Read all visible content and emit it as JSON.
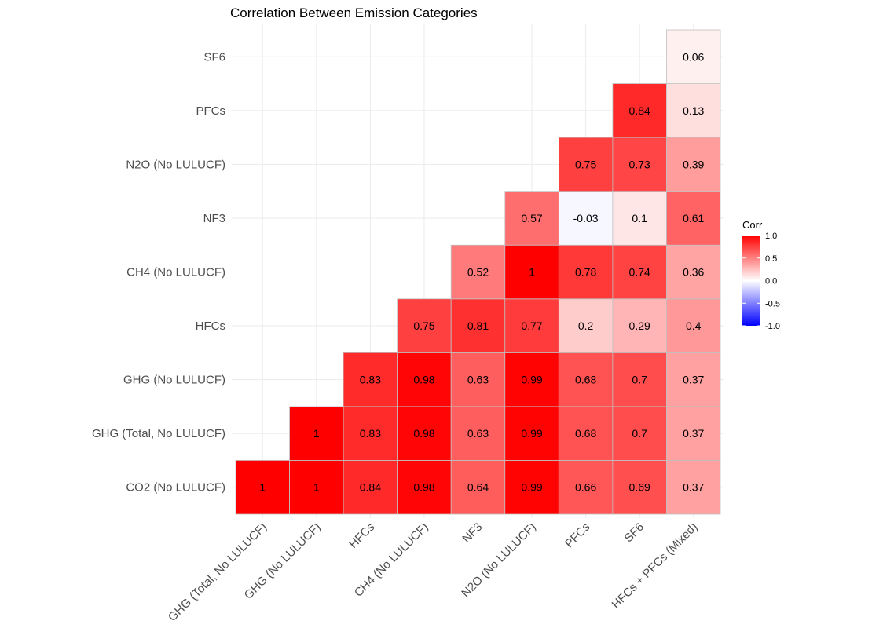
{
  "chart_data": {
    "type": "heatmap",
    "title": "Correlation Between Emission Categories",
    "x_categories": [
      "GHG (Total, No LULUCF)",
      "GHG (No LULUCF)",
      "HFCs",
      "CH4 (No LULUCF)",
      "NF3",
      "N2O (No LULUCF)",
      "PFCs",
      "SF6",
      "HFCs + PFCs (Mixed)"
    ],
    "y_categories": [
      "CO2 (No LULUCF)",
      "GHG (Total, No LULUCF)",
      "GHG (No LULUCF)",
      "HFCs",
      "CH4 (No LULUCF)",
      "NF3",
      "N2O (No LULUCF)",
      "PFCs",
      "SF6"
    ],
    "cells": [
      {
        "x": "GHG (Total, No LULUCF)",
        "y": "CO2 (No LULUCF)",
        "value": 1
      },
      {
        "x": "GHG (No LULUCF)",
        "y": "CO2 (No LULUCF)",
        "value": 1
      },
      {
        "x": "HFCs",
        "y": "CO2 (No LULUCF)",
        "value": 0.84
      },
      {
        "x": "CH4 (No LULUCF)",
        "y": "CO2 (No LULUCF)",
        "value": 0.98
      },
      {
        "x": "NF3",
        "y": "CO2 (No LULUCF)",
        "value": 0.64
      },
      {
        "x": "N2O (No LULUCF)",
        "y": "CO2 (No LULUCF)",
        "value": 0.99
      },
      {
        "x": "PFCs",
        "y": "CO2 (No LULUCF)",
        "value": 0.66
      },
      {
        "x": "SF6",
        "y": "CO2 (No LULUCF)",
        "value": 0.69
      },
      {
        "x": "HFCs + PFCs (Mixed)",
        "y": "CO2 (No LULUCF)",
        "value": 0.37
      },
      {
        "x": "GHG (No LULUCF)",
        "y": "GHG (Total, No LULUCF)",
        "value": 1
      },
      {
        "x": "HFCs",
        "y": "GHG (Total, No LULUCF)",
        "value": 0.83
      },
      {
        "x": "CH4 (No LULUCF)",
        "y": "GHG (Total, No LULUCF)",
        "value": 0.98
      },
      {
        "x": "NF3",
        "y": "GHG (Total, No LULUCF)",
        "value": 0.63
      },
      {
        "x": "N2O (No LULUCF)",
        "y": "GHG (Total, No LULUCF)",
        "value": 0.99
      },
      {
        "x": "PFCs",
        "y": "GHG (Total, No LULUCF)",
        "value": 0.68
      },
      {
        "x": "SF6",
        "y": "GHG (Total, No LULUCF)",
        "value": 0.7
      },
      {
        "x": "HFCs + PFCs (Mixed)",
        "y": "GHG (Total, No LULUCF)",
        "value": 0.37
      },
      {
        "x": "HFCs",
        "y": "GHG (No LULUCF)",
        "value": 0.83
      },
      {
        "x": "CH4 (No LULUCF)",
        "y": "GHG (No LULUCF)",
        "value": 0.98
      },
      {
        "x": "NF3",
        "y": "GHG (No LULUCF)",
        "value": 0.63
      },
      {
        "x": "N2O (No LULUCF)",
        "y": "GHG (No LULUCF)",
        "value": 0.99
      },
      {
        "x": "PFCs",
        "y": "GHG (No LULUCF)",
        "value": 0.68
      },
      {
        "x": "SF6",
        "y": "GHG (No LULUCF)",
        "value": 0.7
      },
      {
        "x": "HFCs + PFCs (Mixed)",
        "y": "GHG (No LULUCF)",
        "value": 0.37
      },
      {
        "x": "CH4 (No LULUCF)",
        "y": "HFCs",
        "value": 0.75
      },
      {
        "x": "NF3",
        "y": "HFCs",
        "value": 0.81
      },
      {
        "x": "N2O (No LULUCF)",
        "y": "HFCs",
        "value": 0.77
      },
      {
        "x": "PFCs",
        "y": "HFCs",
        "value": 0.2
      },
      {
        "x": "SF6",
        "y": "HFCs",
        "value": 0.29
      },
      {
        "x": "HFCs + PFCs (Mixed)",
        "y": "HFCs",
        "value": 0.4
      },
      {
        "x": "NF3",
        "y": "CH4 (No LULUCF)",
        "value": 0.52
      },
      {
        "x": "N2O (No LULUCF)",
        "y": "CH4 (No LULUCF)",
        "value": 1
      },
      {
        "x": "PFCs",
        "y": "CH4 (No LULUCF)",
        "value": 0.78
      },
      {
        "x": "SF6",
        "y": "CH4 (No LULUCF)",
        "value": 0.74
      },
      {
        "x": "HFCs + PFCs (Mixed)",
        "y": "CH4 (No LULUCF)",
        "value": 0.36
      },
      {
        "x": "N2O (No LULUCF)",
        "y": "NF3",
        "value": 0.57
      },
      {
        "x": "PFCs",
        "y": "NF3",
        "value": -0.03
      },
      {
        "x": "SF6",
        "y": "NF3",
        "value": 0.1
      },
      {
        "x": "HFCs + PFCs (Mixed)",
        "y": "NF3",
        "value": 0.61
      },
      {
        "x": "PFCs",
        "y": "N2O (No LULUCF)",
        "value": 0.75
      },
      {
        "x": "SF6",
        "y": "N2O (No LULUCF)",
        "value": 0.73
      },
      {
        "x": "HFCs + PFCs (Mixed)",
        "y": "N2O (No LULUCF)",
        "value": 0.39
      },
      {
        "x": "SF6",
        "y": "PFCs",
        "value": 0.84
      },
      {
        "x": "HFCs + PFCs (Mixed)",
        "y": "PFCs",
        "value": 0.13
      },
      {
        "x": "HFCs + PFCs (Mixed)",
        "y": "SF6",
        "value": 0.06
      }
    ],
    "color_scale": {
      "low": "#0000ff",
      "mid": "#ffffff",
      "high": "#ff0000",
      "limits": [
        -1,
        1
      ]
    },
    "legend": {
      "title": "Corr",
      "ticks": [
        "1.0",
        "0.5",
        "0.0",
        "-0.5",
        "-1.0"
      ],
      "placement": "right"
    },
    "grid": true
  }
}
